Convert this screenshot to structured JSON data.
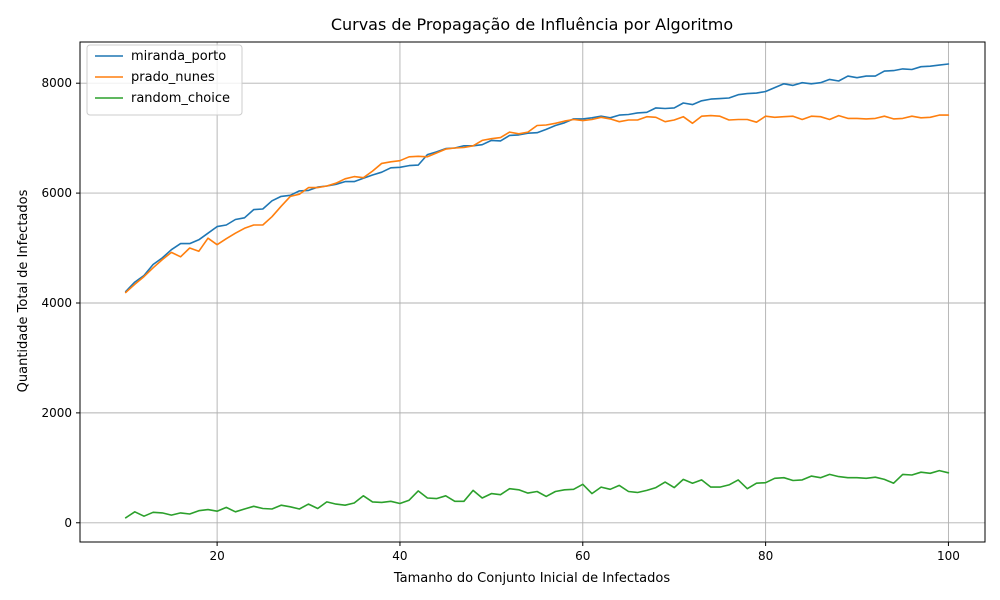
{
  "chart_data": {
    "type": "line",
    "title": "Curvas de Propagação de Influência por Algoritmo",
    "xlabel": "Tamanho do Conjunto Inicial de Infectados",
    "ylabel": "Quantidade Total de Infectados",
    "xlim": [
      5,
      104
    ],
    "ylim": [
      -350,
      8750
    ],
    "xticks": [
      20,
      40,
      60,
      80,
      100
    ],
    "yticks": [
      0,
      2000,
      4000,
      6000,
      8000
    ],
    "grid": true,
    "legend_position": "upper-left",
    "x": [
      10,
      11,
      12,
      13,
      14,
      15,
      16,
      17,
      18,
      19,
      20,
      21,
      22,
      23,
      24,
      25,
      26,
      27,
      28,
      29,
      30,
      31,
      32,
      33,
      34,
      35,
      36,
      37,
      38,
      39,
      40,
      41,
      42,
      43,
      44,
      45,
      46,
      47,
      48,
      49,
      50,
      51,
      52,
      53,
      54,
      55,
      56,
      57,
      58,
      59,
      60,
      61,
      62,
      63,
      64,
      65,
      66,
      67,
      68,
      69,
      70,
      71,
      72,
      73,
      74,
      75,
      76,
      77,
      78,
      79,
      80,
      81,
      82,
      83,
      84,
      85,
      86,
      87,
      88,
      89,
      90,
      91,
      92,
      93,
      94,
      95,
      96,
      97,
      98,
      99,
      100
    ],
    "series": [
      {
        "name": "miranda_porto",
        "color": "#1f77b4",
        "values": [
          4210,
          4380,
          4500,
          4700,
          4820,
          4970,
          5080,
          5080,
          5150,
          5270,
          5390,
          5420,
          5520,
          5550,
          5700,
          5710,
          5860,
          5940,
          5960,
          6040,
          6050,
          6110,
          6130,
          6160,
          6210,
          6210,
          6270,
          6330,
          6380,
          6460,
          6470,
          6500,
          6510,
          6700,
          6750,
          6810,
          6820,
          6860,
          6860,
          6880,
          6960,
          6950,
          7050,
          7060,
          7090,
          7100,
          7160,
          7230,
          7280,
          7350,
          7350,
          7370,
          7400,
          7370,
          7420,
          7430,
          7460,
          7470,
          7550,
          7540,
          7550,
          7640,
          7610,
          7680,
          7710,
          7720,
          7730,
          7790,
          7810,
          7820,
          7850,
          7920,
          7990,
          7960,
          8010,
          7990,
          8010,
          8070,
          8040,
          8130,
          8100,
          8130,
          8130,
          8220,
          8230,
          8260,
          8250,
          8300,
          8310,
          8330,
          8350
        ]
      },
      {
        "name": "prado_nunes",
        "color": "#ff7f0e",
        "values": [
          4190,
          4340,
          4480,
          4640,
          4790,
          4920,
          4840,
          5000,
          4940,
          5180,
          5060,
          5170,
          5270,
          5360,
          5420,
          5420,
          5570,
          5760,
          5940,
          5980,
          6100,
          6100,
          6130,
          6180,
          6260,
          6300,
          6280,
          6400,
          6540,
          6570,
          6590,
          6660,
          6670,
          6660,
          6730,
          6800,
          6820,
          6830,
          6860,
          6960,
          6990,
          7010,
          7110,
          7080,
          7110,
          7230,
          7240,
          7270,
          7310,
          7340,
          7320,
          7340,
          7380,
          7350,
          7300,
          7330,
          7330,
          7390,
          7380,
          7300,
          7330,
          7390,
          7270,
          7400,
          7410,
          7400,
          7330,
          7340,
          7340,
          7290,
          7400,
          7380,
          7390,
          7400,
          7340,
          7400,
          7390,
          7340,
          7410,
          7360,
          7360,
          7350,
          7360,
          7400,
          7350,
          7360,
          7400,
          7370,
          7380,
          7420,
          7420
        ]
      },
      {
        "name": "random_choice",
        "color": "#2ca02c",
        "values": [
          90,
          200,
          120,
          190,
          180,
          140,
          180,
          160,
          220,
          240,
          210,
          280,
          200,
          250,
          300,
          260,
          250,
          320,
          290,
          250,
          340,
          260,
          380,
          340,
          320,
          360,
          490,
          380,
          370,
          390,
          350,
          410,
          580,
          450,
          440,
          490,
          390,
          390,
          590,
          450,
          530,
          510,
          620,
          600,
          540,
          570,
          480,
          570,
          600,
          610,
          700,
          530,
          650,
          610,
          680,
          570,
          550,
          590,
          640,
          740,
          640,
          790,
          720,
          780,
          650,
          650,
          690,
          780,
          620,
          720,
          730,
          810,
          820,
          770,
          780,
          850,
          820,
          880,
          840,
          820,
          820,
          810,
          830,
          790,
          720,
          880,
          870,
          920,
          900,
          950,
          910
        ]
      }
    ]
  }
}
